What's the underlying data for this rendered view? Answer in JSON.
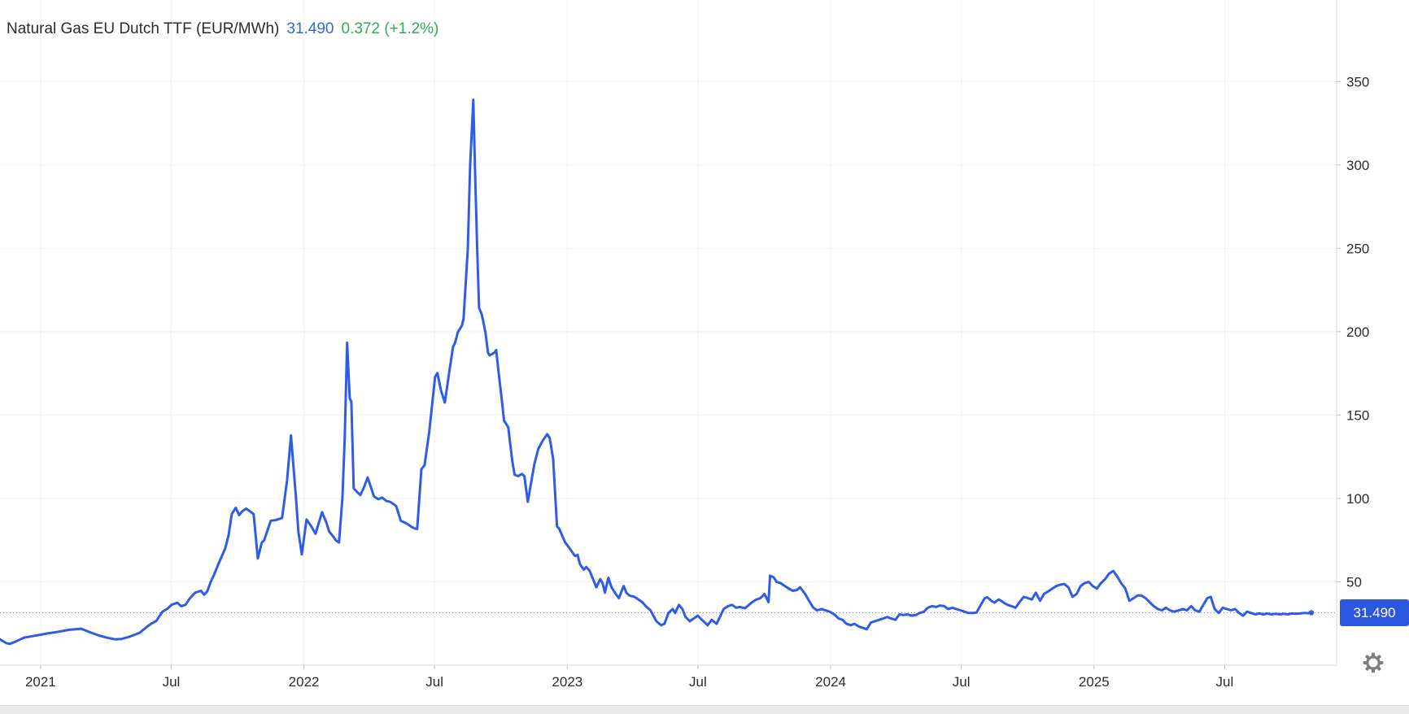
{
  "header": {
    "title": "Natural Gas EU Dutch TTF (EUR/MWh)",
    "last_value": "31.490",
    "change": "0.372 (+1.2%)"
  },
  "price_tag": {
    "value": "31.490"
  },
  "colors": {
    "line": "#2e5ce6",
    "tag_bg": "#2b57e0",
    "value_blue": "#3465dc",
    "change_green": "#34a853",
    "grid": "#efefef",
    "axis": "#d9d9d9",
    "label": "#2b2b2b",
    "dotted": "#64748b",
    "scrollbar_bg": "#e9e9e9",
    "gear": "#7f7f7f"
  },
  "chart_data": {
    "type": "line",
    "title": "Natural Gas EU Dutch TTF (EUR/MWh)",
    "series_name": "Dutch TTF natural gas price",
    "unit": "EUR/MWh",
    "legend": "none",
    "grid": "on",
    "x_range": [
      2020.846,
      2025.921
    ],
    "y_range": [
      0,
      398.9
    ],
    "y_axis": {
      "position": "right",
      "ticks": [
        50,
        100,
        150,
        200,
        250,
        300,
        350
      ]
    },
    "x_axis": {
      "ticks": [
        {
          "t": 2021.0,
          "label": "2021"
        },
        {
          "t": 2021.496,
          "label": "Jul"
        },
        {
          "t": 2022.0,
          "label": "2022"
        },
        {
          "t": 2022.496,
          "label": "Jul"
        },
        {
          "t": 2023.0,
          "label": "2023"
        },
        {
          "t": 2023.496,
          "label": "Jul"
        },
        {
          "t": 2024.0,
          "label": "2024"
        },
        {
          "t": 2024.496,
          "label": "Jul"
        },
        {
          "t": 2025.0,
          "label": "2025"
        },
        {
          "t": 2025.496,
          "label": "Jul"
        }
      ]
    },
    "reference_line": 31.49,
    "current": {
      "t": 2025.825,
      "value": 31.49
    },
    "points": [
      [
        2020.846,
        15.5
      ],
      [
        2020.87,
        13.2
      ],
      [
        2020.883,
        12.8
      ],
      [
        2020.907,
        14.3
      ],
      [
        2020.938,
        16.6
      ],
      [
        2020.969,
        17.4
      ],
      [
        2021.0,
        18.3
      ],
      [
        2021.025,
        19.0
      ],
      [
        2021.062,
        19.9
      ],
      [
        2021.108,
        21.2
      ],
      [
        2021.154,
        21.9
      ],
      [
        2021.192,
        19.5
      ],
      [
        2021.222,
        17.8
      ],
      [
        2021.253,
        16.5
      ],
      [
        2021.284,
        15.5
      ],
      [
        2021.309,
        15.8
      ],
      [
        2021.334,
        16.9
      ],
      [
        2021.358,
        18.3
      ],
      [
        2021.377,
        19.5
      ],
      [
        2021.402,
        22.8
      ],
      [
        2021.42,
        24.8
      ],
      [
        2021.439,
        26.5
      ],
      [
        2021.463,
        32.1
      ],
      [
        2021.482,
        33.9
      ],
      [
        2021.497,
        36.2
      ],
      [
        2021.519,
        37.5
      ],
      [
        2021.534,
        35.4
      ],
      [
        2021.55,
        36.2
      ],
      [
        2021.568,
        40.3
      ],
      [
        2021.587,
        43.5
      ],
      [
        2021.609,
        44.6
      ],
      [
        2021.621,
        42.3
      ],
      [
        2021.633,
        44.3
      ],
      [
        2021.646,
        50.0
      ],
      [
        2021.658,
        54.0
      ],
      [
        2021.673,
        59.8
      ],
      [
        2021.686,
        64.5
      ],
      [
        2021.701,
        70.0
      ],
      [
        2021.714,
        78.0
      ],
      [
        2021.726,
        90.6
      ],
      [
        2021.741,
        94.4
      ],
      [
        2021.754,
        90.0
      ],
      [
        2021.766,
        92.3
      ],
      [
        2021.781,
        93.9
      ],
      [
        2021.797,
        92.0
      ],
      [
        2021.809,
        90.6
      ],
      [
        2021.825,
        64.0
      ],
      [
        2021.84,
        73.6
      ],
      [
        2021.849,
        74.9
      ],
      [
        2021.874,
        86.6
      ],
      [
        2021.89,
        86.9
      ],
      [
        2021.917,
        88.2
      ],
      [
        2021.936,
        111.0
      ],
      [
        2021.951,
        137.8
      ],
      [
        2021.97,
        100.0
      ],
      [
        2021.979,
        80.0
      ],
      [
        2021.992,
        66.4
      ],
      [
        2022.01,
        87.4
      ],
      [
        2022.029,
        83.0
      ],
      [
        2022.044,
        78.8
      ],
      [
        2022.056,
        85.0
      ],
      [
        2022.069,
        91.8
      ],
      [
        2022.084,
        86.0
      ],
      [
        2022.096,
        80.1
      ],
      [
        2022.112,
        77.0
      ],
      [
        2022.121,
        74.9
      ],
      [
        2022.133,
        73.6
      ],
      [
        2022.146,
        100.0
      ],
      [
        2022.155,
        137.0
      ],
      [
        2022.164,
        193.4
      ],
      [
        2022.174,
        160.0
      ],
      [
        2022.18,
        158.0
      ],
      [
        2022.189,
        106.0
      ],
      [
        2022.198,
        104.5
      ],
      [
        2022.214,
        102.0
      ],
      [
        2022.229,
        107.0
      ],
      [
        2022.242,
        112.6
      ],
      [
        2022.254,
        107.0
      ],
      [
        2022.266,
        101.2
      ],
      [
        2022.282,
        99.6
      ],
      [
        2022.297,
        100.5
      ],
      [
        2022.313,
        98.5
      ],
      [
        2022.328,
        97.9
      ],
      [
        2022.35,
        95.5
      ],
      [
        2022.368,
        86.6
      ],
      [
        2022.39,
        85.0
      ],
      [
        2022.408,
        83.0
      ],
      [
        2022.421,
        82.0
      ],
      [
        2022.43,
        81.7
      ],
      [
        2022.446,
        117.5
      ],
      [
        2022.458,
        119.9
      ],
      [
        2022.476,
        140.2
      ],
      [
        2022.498,
        172.8
      ],
      [
        2022.507,
        175.2
      ],
      [
        2022.52,
        165.0
      ],
      [
        2022.535,
        157.5
      ],
      [
        2022.551,
        175.0
      ],
      [
        2022.566,
        190.6
      ],
      [
        2022.575,
        193.9
      ],
      [
        2022.584,
        199.6
      ],
      [
        2022.6,
        203.7
      ],
      [
        2022.606,
        207.7
      ],
      [
        2022.622,
        249.2
      ],
      [
        2022.631,
        299.6
      ],
      [
        2022.643,
        339.1
      ],
      [
        2022.649,
        301.2
      ],
      [
        2022.658,
        249.2
      ],
      [
        2022.665,
        214.2
      ],
      [
        2022.674,
        211.0
      ],
      [
        2022.68,
        206.9
      ],
      [
        2022.689,
        199.6
      ],
      [
        2022.699,
        187.4
      ],
      [
        2022.705,
        185.8
      ],
      [
        2022.723,
        187.4
      ],
      [
        2022.73,
        189.0
      ],
      [
        2022.739,
        176.0
      ],
      [
        2022.751,
        159.8
      ],
      [
        2022.76,
        146.7
      ],
      [
        2022.776,
        142.7
      ],
      [
        2022.791,
        122.4
      ],
      [
        2022.8,
        114.2
      ],
      [
        2022.813,
        113.4
      ],
      [
        2022.828,
        114.7
      ],
      [
        2022.837,
        113.4
      ],
      [
        2022.85,
        98.0
      ],
      [
        2022.875,
        120.7
      ],
      [
        2022.89,
        129.7
      ],
      [
        2022.906,
        134.5
      ],
      [
        2022.924,
        138.6
      ],
      [
        2022.933,
        136.2
      ],
      [
        2022.946,
        124.0
      ],
      [
        2022.961,
        83.3
      ],
      [
        2022.97,
        81.7
      ],
      [
        2022.983,
        76.8
      ],
      [
        2022.992,
        73.6
      ],
      [
        2023.008,
        70.3
      ],
      [
        2023.029,
        65.5
      ],
      [
        2023.039,
        66.2
      ],
      [
        2023.048,
        60.6
      ],
      [
        2023.063,
        57.3
      ],
      [
        2023.072,
        58.9
      ],
      [
        2023.085,
        56.5
      ],
      [
        2023.1,
        50.8
      ],
      [
        2023.11,
        46.7
      ],
      [
        2023.125,
        51.6
      ],
      [
        2023.134,
        49.2
      ],
      [
        2023.143,
        43.5
      ],
      [
        2023.156,
        52.4
      ],
      [
        2023.168,
        46.7
      ],
      [
        2023.184,
        42.7
      ],
      [
        2023.196,
        40.2
      ],
      [
        2023.214,
        47.5
      ],
      [
        2023.224,
        43.5
      ],
      [
        2023.236,
        41.8
      ],
      [
        2023.255,
        41.0
      ],
      [
        2023.27,
        39.4
      ],
      [
        2023.285,
        37.8
      ],
      [
        2023.298,
        35.4
      ],
      [
        2023.316,
        32.9
      ],
      [
        2023.338,
        26.4
      ],
      [
        2023.356,
        24.0
      ],
      [
        2023.369,
        24.8
      ],
      [
        2023.384,
        31.3
      ],
      [
        2023.4,
        33.7
      ],
      [
        2023.409,
        31.3
      ],
      [
        2023.424,
        36.2
      ],
      [
        2023.437,
        33.7
      ],
      [
        2023.449,
        28.9
      ],
      [
        2023.465,
        26.4
      ],
      [
        2023.48,
        28.0
      ],
      [
        2023.495,
        29.7
      ],
      [
        2023.517,
        26.4
      ],
      [
        2023.533,
        24.0
      ],
      [
        2023.548,
        27.2
      ],
      [
        2023.567,
        24.8
      ],
      [
        2023.594,
        33.7
      ],
      [
        2023.61,
        35.4
      ],
      [
        2023.625,
        36.2
      ],
      [
        2023.641,
        34.5
      ],
      [
        2023.656,
        34.9
      ],
      [
        2023.675,
        34.2
      ],
      [
        2023.702,
        37.8
      ],
      [
        2023.718,
        39.4
      ],
      [
        2023.733,
        40.2
      ],
      [
        2023.749,
        42.7
      ],
      [
        2023.764,
        37.8
      ],
      [
        2023.77,
        53.7
      ],
      [
        2023.783,
        52.8
      ],
      [
        2023.795,
        50.0
      ],
      [
        2023.81,
        49.2
      ],
      [
        2023.826,
        47.5
      ],
      [
        2023.841,
        45.9
      ],
      [
        2023.857,
        44.6
      ],
      [
        2023.872,
        45.1
      ],
      [
        2023.884,
        46.7
      ],
      [
        2023.903,
        42.7
      ],
      [
        2023.918,
        38.6
      ],
      [
        2023.934,
        34.5
      ],
      [
        2023.949,
        32.9
      ],
      [
        2023.965,
        33.7
      ],
      [
        2023.98,
        32.9
      ],
      [
        2023.996,
        32.1
      ],
      [
        2024.014,
        30.5
      ],
      [
        2024.03,
        28.0
      ],
      [
        2024.045,
        27.2
      ],
      [
        2024.06,
        24.8
      ],
      [
        2024.076,
        24.0
      ],
      [
        2024.091,
        24.8
      ],
      [
        2024.107,
        23.2
      ],
      [
        2024.122,
        22.4
      ],
      [
        2024.137,
        21.6
      ],
      [
        2024.153,
        25.6
      ],
      [
        2024.168,
        26.4
      ],
      [
        2024.184,
        27.2
      ],
      [
        2024.199,
        28.0
      ],
      [
        2024.215,
        28.9
      ],
      [
        2024.23,
        28.0
      ],
      [
        2024.246,
        27.2
      ],
      [
        2024.261,
        30.5
      ],
      [
        2024.277,
        30.1
      ],
      [
        2024.292,
        30.5
      ],
      [
        2024.307,
        29.7
      ],
      [
        2024.323,
        30.1
      ],
      [
        2024.338,
        31.3
      ],
      [
        2024.354,
        32.1
      ],
      [
        2024.369,
        34.5
      ],
      [
        2024.385,
        35.4
      ],
      [
        2024.4,
        34.9
      ],
      [
        2024.415,
        35.8
      ],
      [
        2024.431,
        35.4
      ],
      [
        2024.446,
        33.7
      ],
      [
        2024.462,
        34.5
      ],
      [
        2024.477,
        33.7
      ],
      [
        2024.493,
        32.9
      ],
      [
        2024.508,
        32.1
      ],
      [
        2024.523,
        31.3
      ],
      [
        2024.539,
        31.3
      ],
      [
        2024.554,
        31.6
      ],
      [
        2024.57,
        36.2
      ],
      [
        2024.585,
        40.2
      ],
      [
        2024.595,
        40.7
      ],
      [
        2024.61,
        38.6
      ],
      [
        2024.622,
        37.5
      ],
      [
        2024.638,
        39.4
      ],
      [
        2024.647,
        38.6
      ],
      [
        2024.662,
        37.0
      ],
      [
        2024.672,
        36.2
      ],
      [
        2024.687,
        35.4
      ],
      [
        2024.702,
        34.5
      ],
      [
        2024.718,
        38.0
      ],
      [
        2024.733,
        41.0
      ],
      [
        2024.749,
        40.2
      ],
      [
        2024.764,
        39.4
      ],
      [
        2024.779,
        43.5
      ],
      [
        2024.795,
        38.6
      ],
      [
        2024.81,
        42.7
      ],
      [
        2024.826,
        44.3
      ],
      [
        2024.841,
        45.9
      ],
      [
        2024.857,
        47.5
      ],
      [
        2024.872,
        48.3
      ],
      [
        2024.887,
        48.7
      ],
      [
        2024.903,
        46.7
      ],
      [
        2024.918,
        41.0
      ],
      [
        2024.934,
        42.7
      ],
      [
        2024.949,
        47.5
      ],
      [
        2024.964,
        49.2
      ],
      [
        2024.98,
        50.0
      ],
      [
        2024.995,
        47.5
      ],
      [
        2025.011,
        45.9
      ],
      [
        2025.026,
        49.2
      ],
      [
        2025.042,
        51.6
      ],
      [
        2025.057,
        54.9
      ],
      [
        2025.073,
        56.5
      ],
      [
        2025.088,
        53.3
      ],
      [
        2025.103,
        49.2
      ],
      [
        2025.119,
        45.9
      ],
      [
        2025.134,
        38.6
      ],
      [
        2025.15,
        40.2
      ],
      [
        2025.165,
        41.8
      ],
      [
        2025.18,
        41.8
      ],
      [
        2025.196,
        40.2
      ],
      [
        2025.211,
        37.8
      ],
      [
        2025.227,
        35.4
      ],
      [
        2025.242,
        33.7
      ],
      [
        2025.258,
        32.9
      ],
      [
        2025.273,
        34.5
      ],
      [
        2025.288,
        32.9
      ],
      [
        2025.304,
        32.1
      ],
      [
        2025.322,
        32.9
      ],
      [
        2025.338,
        33.7
      ],
      [
        2025.353,
        32.9
      ],
      [
        2025.369,
        35.4
      ],
      [
        2025.384,
        32.9
      ],
      [
        2025.4,
        32.1
      ],
      [
        2025.415,
        36.2
      ],
      [
        2025.43,
        40.2
      ],
      [
        2025.443,
        41.0
      ],
      [
        2025.458,
        33.7
      ],
      [
        2025.473,
        31.3
      ],
      [
        2025.489,
        34.5
      ],
      [
        2025.504,
        33.7
      ],
      [
        2025.52,
        32.9
      ],
      [
        2025.535,
        33.7
      ],
      [
        2025.551,
        31.3
      ],
      [
        2025.566,
        29.7
      ],
      [
        2025.581,
        32.1
      ],
      [
        2025.597,
        31.3
      ],
      [
        2025.612,
        30.5
      ],
      [
        2025.628,
        31.0
      ],
      [
        2025.643,
        30.5
      ],
      [
        2025.658,
        31.0
      ],
      [
        2025.674,
        30.5
      ],
      [
        2025.689,
        30.8
      ],
      [
        2025.705,
        30.5
      ],
      [
        2025.72,
        30.8
      ],
      [
        2025.735,
        30.5
      ],
      [
        2025.751,
        31.0
      ],
      [
        2025.766,
        30.8
      ],
      [
        2025.782,
        31.0
      ],
      [
        2025.797,
        31.3
      ],
      [
        2025.812,
        31.2
      ],
      [
        2025.825,
        31.49
      ]
    ]
  }
}
